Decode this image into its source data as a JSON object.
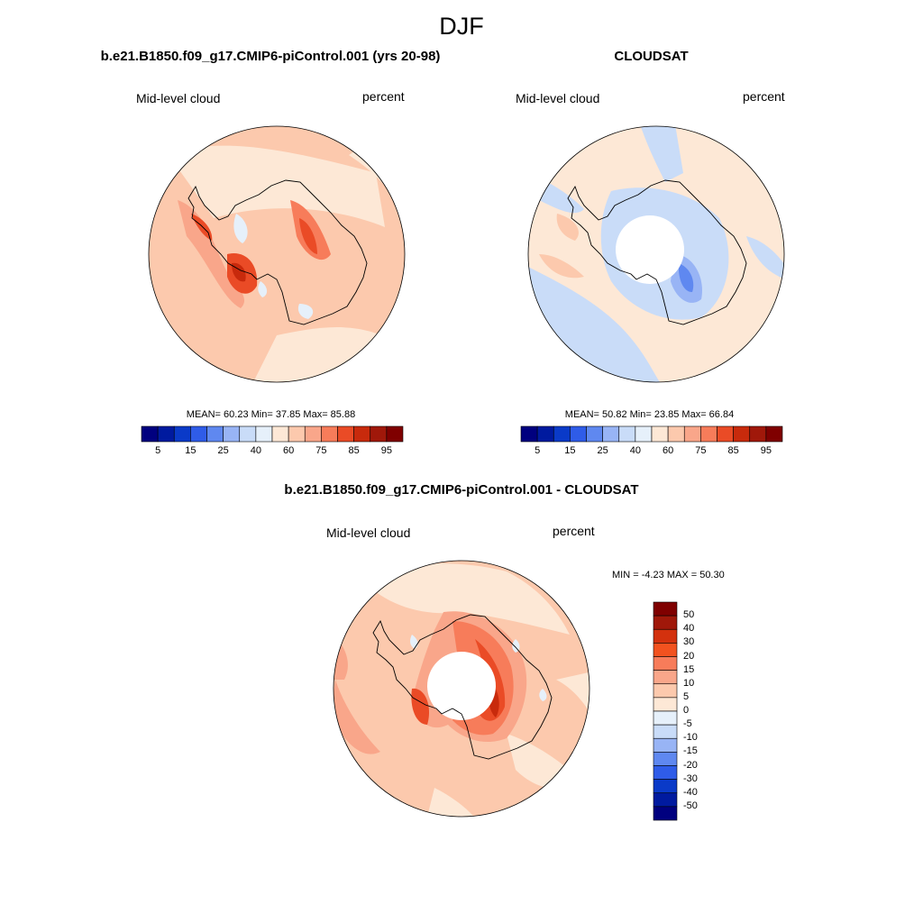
{
  "season": "DJF",
  "panels": [
    {
      "title": "b.e21.B1850.f09_g17.CMIP6-piControl.001 (yrs 20-98)",
      "left_label": "Mid-level cloud",
      "right_label": "percent",
      "stats": "MEAN=  60.23  Min=  37.85  Max=  85.88"
    },
    {
      "title": "CLOUDSAT",
      "left_label": "Mid-level cloud",
      "right_label": "percent",
      "stats": "MEAN=  50.82  Min=  23.85  Max=  66.84"
    },
    {
      "title": "b.e21.B1850.f09_g17.CMIP6-piControl.001 - CLOUDSAT",
      "left_label": "Mid-level cloud",
      "right_label": "percent",
      "stats": "MIN =  -4.23 MAX =  50.30"
    }
  ],
  "colorbar_abs": {
    "colors": [
      "#00007f",
      "#001a9f",
      "#0a3ac8",
      "#2f5ce8",
      "#5f88f0",
      "#98b4f5",
      "#c9dcf8",
      "#e6f0fa",
      "#fde8d6",
      "#fcc9ad",
      "#f9a68a",
      "#f77c5a",
      "#ea4b26",
      "#c82a0c",
      "#a0180a",
      "#7f0000"
    ],
    "tick_labels": [
      "5",
      "15",
      "25",
      "40",
      "60",
      "75",
      "85",
      "95"
    ]
  },
  "colorbar_diff": {
    "colors": [
      "#7f0000",
      "#a0180a",
      "#d3310e",
      "#f2521f",
      "#f77c5a",
      "#f9a68a",
      "#fcc9ad",
      "#fde8d6",
      "#e6f0fa",
      "#c9dcf8",
      "#98b4f5",
      "#5f88f0",
      "#2f5ce8",
      "#0a3ac8",
      "#001a9f",
      "#00007f"
    ],
    "tick_labels": [
      "50",
      "40",
      "30",
      "20",
      "15",
      "10",
      "5",
      "0",
      "-5",
      "-10",
      "-15",
      "-20",
      "-30",
      "-40",
      "-50"
    ]
  }
}
